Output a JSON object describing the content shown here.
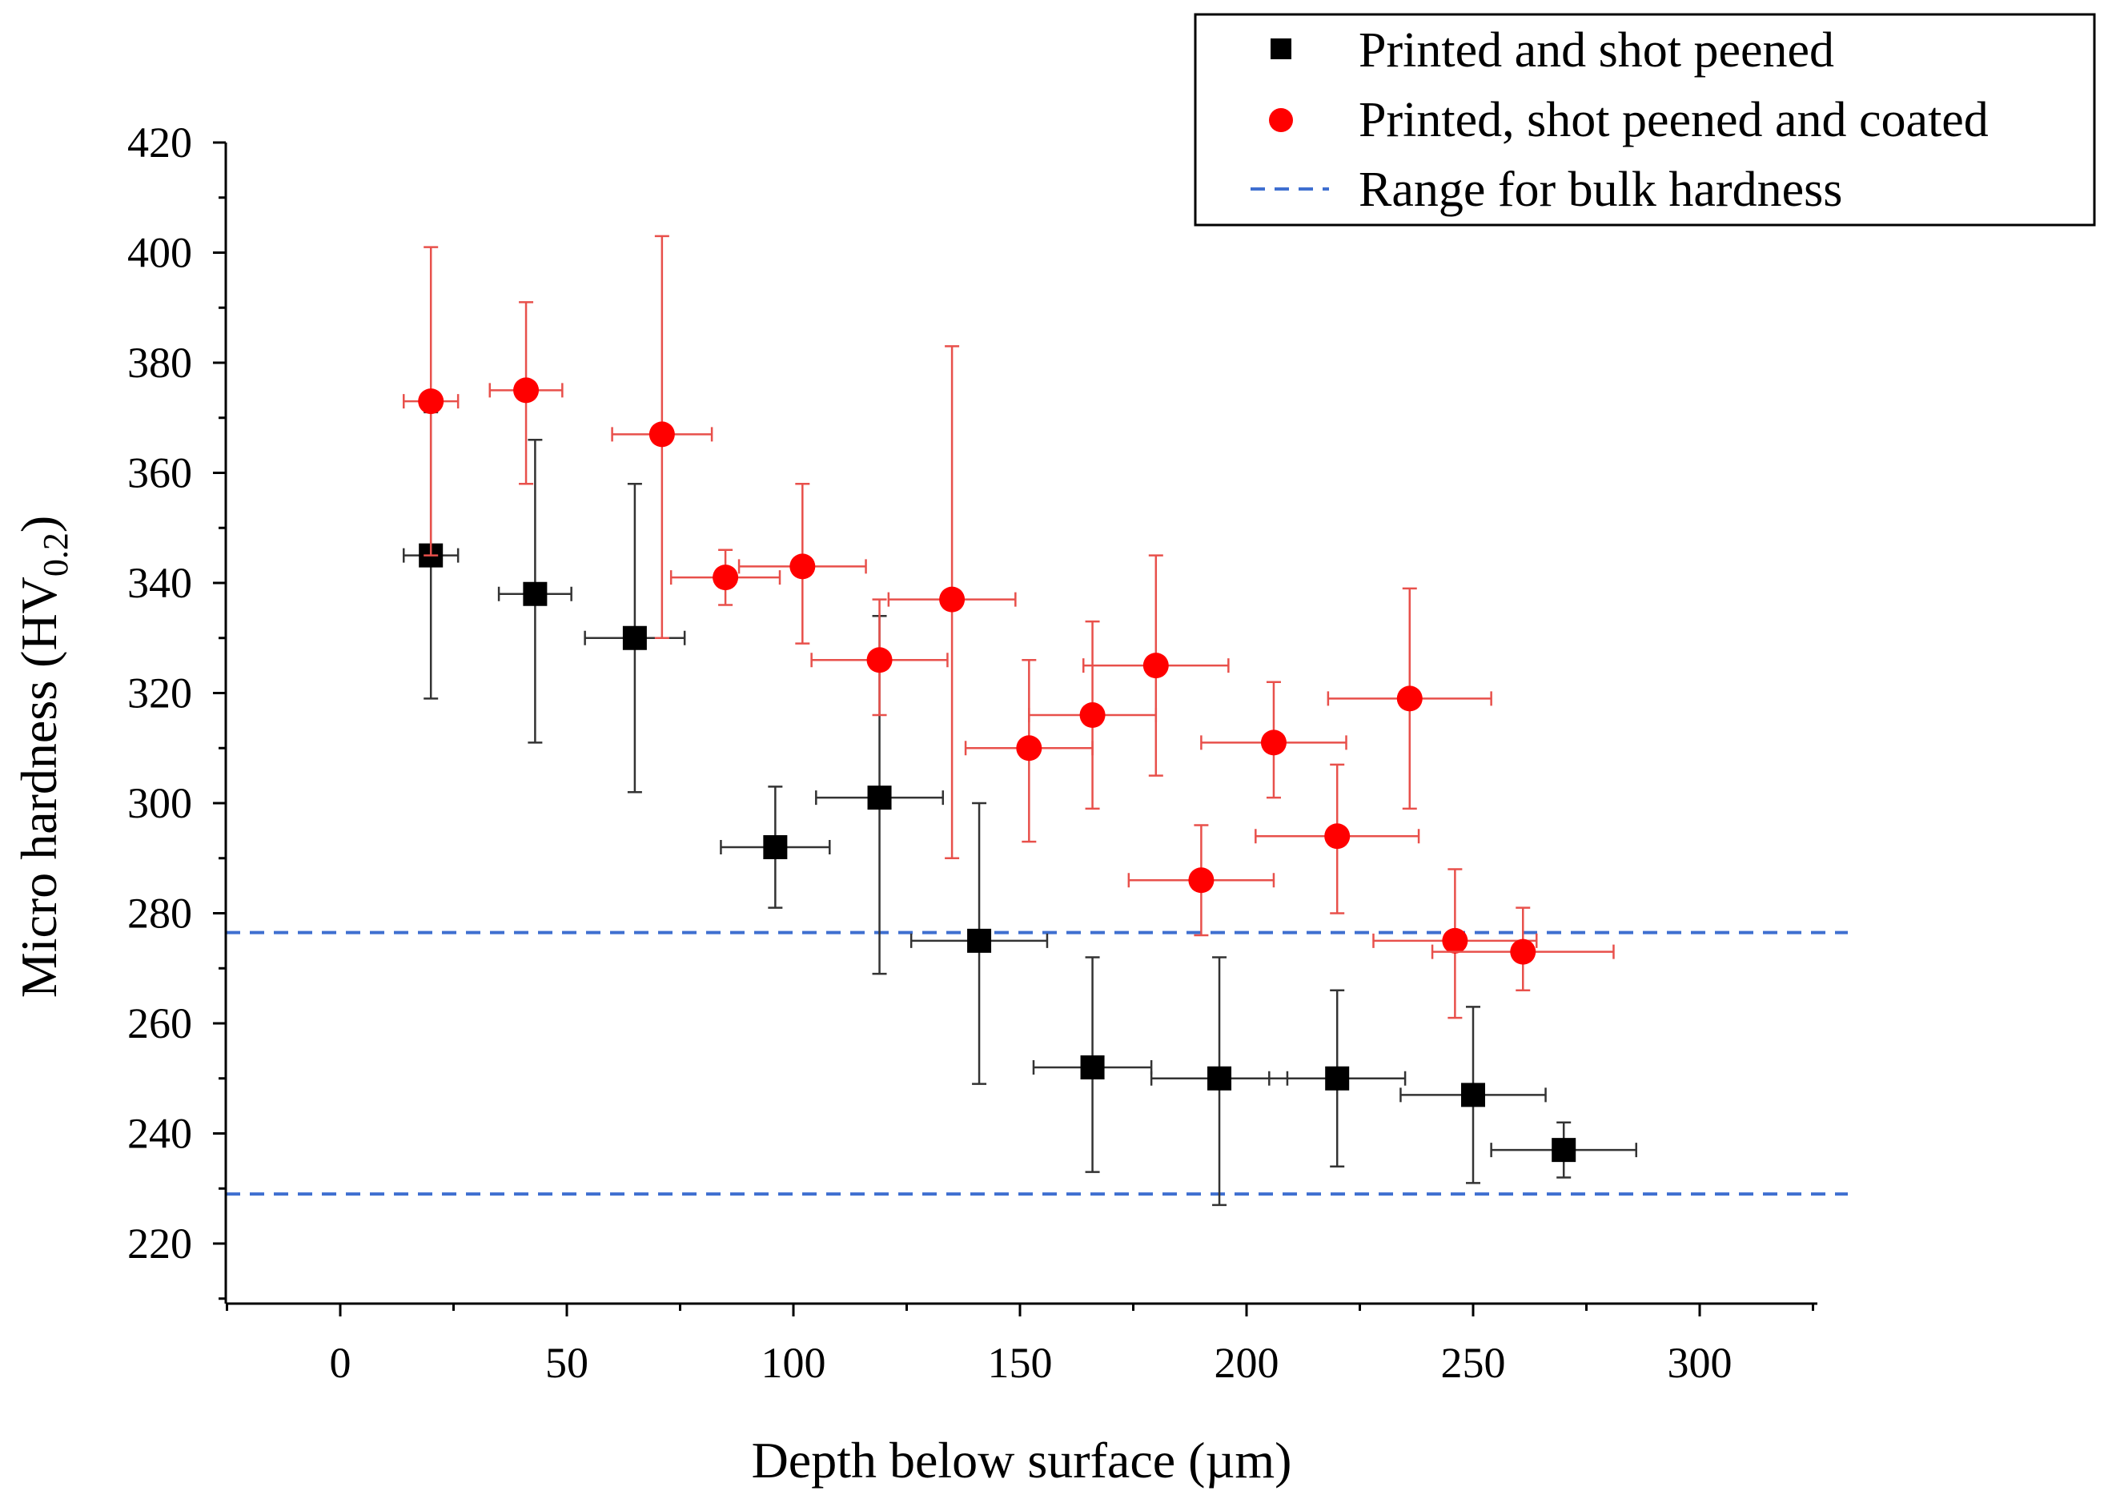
{
  "chart_data": {
    "type": "scatter",
    "xlabel": "Depth below surface (µm)",
    "ylabel_main": "Micro hardness (HV",
    "ylabel_sub": "0.2",
    "ylabel_end": ")",
    "xlim": [
      -25,
      325
    ],
    "ylim": [
      210,
      420
    ],
    "xticks": [
      0,
      50,
      100,
      150,
      200,
      250,
      300
    ],
    "yticks": [
      220,
      240,
      260,
      280,
      300,
      320,
      340,
      360,
      380,
      400,
      420
    ],
    "grid": false,
    "legend_position": "top-right",
    "series": [
      {
        "name": "Printed and shot peened",
        "marker": "square",
        "color": "#000000",
        "points": [
          {
            "x": 20,
            "y": 345,
            "xerr": 6,
            "ylo": 319,
            "yhi": 371
          },
          {
            "x": 43,
            "y": 338,
            "xerr": 8,
            "ylo": 311,
            "yhi": 366
          },
          {
            "x": 65,
            "y": 330,
            "xerr": 11,
            "ylo": 302,
            "yhi": 358
          },
          {
            "x": 96,
            "y": 292,
            "xerr": 12,
            "ylo": 281,
            "yhi": 303
          },
          {
            "x": 119,
            "y": 301,
            "xerr": 14,
            "ylo": 269,
            "yhi": 334
          },
          {
            "x": 141,
            "y": 275,
            "xerr": 15,
            "ylo": 249,
            "yhi": 300
          },
          {
            "x": 166,
            "y": 252,
            "xerr": 13,
            "ylo": 233,
            "yhi": 272
          },
          {
            "x": 194,
            "y": 250,
            "xerr": 15,
            "ylo": 227,
            "yhi": 272
          },
          {
            "x": 220,
            "y": 250,
            "xerr": 15,
            "ylo": 234,
            "yhi": 266
          },
          {
            "x": 250,
            "y": 247,
            "xerr": 16,
            "ylo": 231,
            "yhi": 263
          },
          {
            "x": 270,
            "y": 237,
            "xerr": 16,
            "ylo": 232,
            "yhi": 242
          }
        ]
      },
      {
        "name": "Printed, shot peened and coated",
        "marker": "circle",
        "color": "#ff0000",
        "errcolor": "#e8504b",
        "points": [
          {
            "x": 20,
            "y": 373,
            "xerr": 6,
            "ylo": 345,
            "yhi": 401
          },
          {
            "x": 41,
            "y": 375,
            "xerr": 8,
            "ylo": 358,
            "yhi": 391
          },
          {
            "x": 71,
            "y": 367,
            "xerr": 11,
            "ylo": 330,
            "yhi": 403
          },
          {
            "x": 85,
            "y": 341,
            "xerr": 12,
            "ylo": 336,
            "yhi": 346
          },
          {
            "x": 102,
            "y": 343,
            "xerr": 14,
            "ylo": 329,
            "yhi": 358
          },
          {
            "x": 119,
            "y": 326,
            "xerr": 15,
            "ylo": 316,
            "yhi": 337
          },
          {
            "x": 135,
            "y": 337,
            "xerr": 14,
            "ylo": 290,
            "yhi": 383
          },
          {
            "x": 152,
            "y": 310,
            "xerr": 14,
            "ylo": 293,
            "yhi": 326
          },
          {
            "x": 166,
            "y": 316,
            "xerr": 14,
            "ylo": 299,
            "yhi": 333
          },
          {
            "x": 180,
            "y": 325,
            "xerr": 16,
            "ylo": 305,
            "yhi": 345
          },
          {
            "x": 190,
            "y": 286,
            "xerr": 16,
            "ylo": 276,
            "yhi": 296
          },
          {
            "x": 206,
            "y": 311,
            "xerr": 16,
            "ylo": 301,
            "yhi": 322
          },
          {
            "x": 220,
            "y": 294,
            "xerr": 18,
            "ylo": 280,
            "yhi": 307
          },
          {
            "x": 236,
            "y": 319,
            "xerr": 18,
            "ylo": 299,
            "yhi": 339
          },
          {
            "x": 246,
            "y": 275,
            "xerr": 18,
            "ylo": 261,
            "yhi": 288
          },
          {
            "x": 261,
            "y": 273,
            "xerr": 20,
            "ylo": 266,
            "yhi": 281
          }
        ]
      }
    ],
    "reference_lines": {
      "name": "Range for bulk hardness",
      "color": "#3f6fd0",
      "style": "dashed",
      "y_values": [
        276.5,
        229
      ]
    }
  }
}
